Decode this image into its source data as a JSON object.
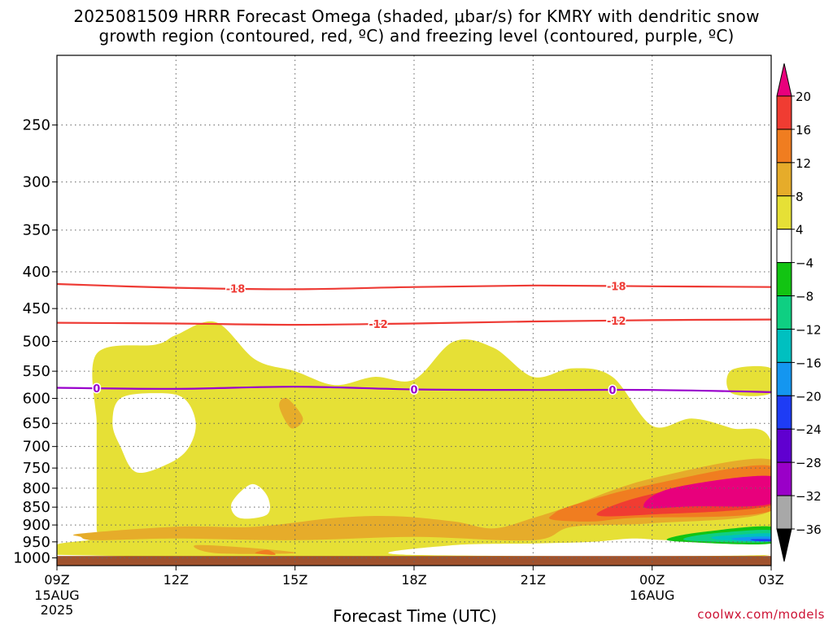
{
  "title": {
    "line1": "2025081509 HRRR Forecast Omega (shaded, μbar/s) for KMRY with dendritic snow",
    "line2": "growth region (contoured, red, ºC) and freezing level (contoured, purple, ºC)"
  },
  "xlabel": "Forecast Time (UTC)",
  "credit": "coolwx.com/models",
  "colors": {
    "temp_contour": "#ee3b35",
    "freezing_contour": "#9900cc",
    "ground": "#a0522d",
    "grid": "#666666"
  },
  "chart_data": {
    "type": "heatmap",
    "x_axis": {
      "ticks": [
        {
          "hour": 0,
          "label": "09Z",
          "sub1": "15AUG",
          "sub2": "2025"
        },
        {
          "hour": 3,
          "label": "12Z",
          "sub1": "",
          "sub2": ""
        },
        {
          "hour": 6,
          "label": "15Z",
          "sub1": "",
          "sub2": ""
        },
        {
          "hour": 9,
          "label": "18Z",
          "sub1": "",
          "sub2": ""
        },
        {
          "hour": 12,
          "label": "21Z",
          "sub1": "",
          "sub2": ""
        },
        {
          "hour": 15,
          "label": "00Z",
          "sub1": "16AUG",
          "sub2": ""
        },
        {
          "hour": 18,
          "label": "03Z",
          "sub1": "",
          "sub2": ""
        }
      ],
      "range": [
        0,
        18
      ]
    },
    "y_axis": {
      "scale": "log-pressure",
      "ticks": [
        250,
        300,
        350,
        400,
        450,
        500,
        550,
        600,
        650,
        700,
        750,
        800,
        850,
        900,
        950,
        1000
      ],
      "range": [
        200,
        1025
      ]
    },
    "colorbar": {
      "labels": [
        "20",
        "16",
        "12",
        "8",
        "4",
        "−4",
        "−8",
        "−12",
        "−16",
        "−20",
        "−24",
        "−28",
        "−32",
        "−36"
      ],
      "bins": [
        {
          "color": "#e8007c"
        },
        {
          "color": "#f03c32"
        },
        {
          "color": "#f07d20"
        },
        {
          "color": "#e6ac2a"
        },
        {
          "color": "#e6e036"
        },
        {
          "color": "#ffffff"
        },
        {
          "color": "#12c412"
        },
        {
          "color": "#0fcf82"
        },
        {
          "color": "#00c0c0"
        },
        {
          "color": "#1496f0"
        },
        {
          "color": "#1e3cf5"
        },
        {
          "color": "#6000d0"
        },
        {
          "color": "#9a00c8"
        },
        {
          "color": "#a8a8a8"
        },
        {
          "color": "#000000"
        }
      ]
    },
    "contours": [
      {
        "label": "-18",
        "kind": "temp",
        "label_hours": [
          4.5,
          14.1
        ],
        "points": [
          [
            0,
            416
          ],
          [
            3,
            421
          ],
          [
            6,
            423
          ],
          [
            9,
            420
          ],
          [
            12,
            418
          ],
          [
            15,
            419
          ],
          [
            18,
            420
          ]
        ]
      },
      {
        "label": "-12",
        "kind": "temp",
        "label_hours": [
          8.1,
          14.1
        ],
        "points": [
          [
            0,
            471
          ],
          [
            3,
            472
          ],
          [
            6,
            474
          ],
          [
            9,
            472
          ],
          [
            12,
            469
          ],
          [
            15,
            467
          ],
          [
            18,
            466
          ]
        ]
      },
      {
        "label": "0",
        "kind": "freezing",
        "label_hours": [
          1.0,
          9.0,
          14.0
        ],
        "points": [
          [
            0,
            580
          ],
          [
            3,
            582
          ],
          [
            6,
            578
          ],
          [
            9,
            583
          ],
          [
            12,
            584
          ],
          [
            15,
            584
          ],
          [
            18,
            588
          ]
        ]
      }
    ],
    "shaded_regions": [
      {
        "bin": "4-8",
        "points": [
          [
            0,
            958
          ],
          [
            1,
            940
          ],
          [
            1,
            910
          ],
          [
            1,
            800
          ],
          [
            1,
            700
          ],
          [
            1,
            648
          ],
          [
            1,
            520
          ],
          [
            2.5,
            505
          ],
          [
            3,
            490
          ],
          [
            4,
            470
          ],
          [
            5,
            530
          ],
          [
            6,
            550
          ],
          [
            7,
            575
          ],
          [
            8,
            560
          ],
          [
            9,
            565
          ],
          [
            10,
            500
          ],
          [
            11,
            510
          ],
          [
            12,
            560
          ],
          [
            13,
            545
          ],
          [
            14,
            560
          ],
          [
            15,
            655
          ],
          [
            16,
            640
          ],
          [
            17,
            660
          ],
          [
            18,
            690
          ],
          [
            18,
            990
          ],
          [
            0,
            990
          ]
        ]
      },
      {
        "bin": "4-8",
        "points": [
          [
            17.0,
            590
          ],
          [
            18,
            590
          ],
          [
            18,
            545
          ],
          [
            17,
            548
          ]
        ]
      },
      {
        "bin": "white-hole",
        "points": [
          [
            1.6,
            600
          ],
          [
            2.5,
            590
          ],
          [
            3.2,
            600
          ],
          [
            3.5,
            650
          ],
          [
            3.3,
            705
          ],
          [
            2.8,
            740
          ],
          [
            2,
            760
          ],
          [
            1.6,
            700
          ],
          [
            1.4,
            650
          ]
        ]
      },
      {
        "bin": "white-hole",
        "points": [
          [
            4.9,
            790
          ],
          [
            5.3,
            820
          ],
          [
            5.3,
            870
          ],
          [
            4.6,
            880
          ],
          [
            4.4,
            840
          ]
        ]
      },
      {
        "bin": "8-12",
        "points": [
          [
            0.6,
            925
          ],
          [
            3,
            905
          ],
          [
            5,
            905
          ],
          [
            7,
            880
          ],
          [
            8.5,
            875
          ],
          [
            10,
            890
          ],
          [
            11,
            910
          ],
          [
            12,
            880
          ],
          [
            13,
            845
          ],
          [
            15,
            775
          ],
          [
            18,
            730
          ],
          [
            18,
            860
          ],
          [
            15,
            895
          ],
          [
            13,
            905
          ],
          [
            12,
            945
          ],
          [
            9,
            935
          ],
          [
            6,
            945
          ],
          [
            3,
            940
          ],
          [
            1,
            945
          ],
          [
            0.6,
            935
          ]
        ]
      },
      {
        "bin": "8-12",
        "points": [
          [
            5.8,
            600
          ],
          [
            6.2,
            640
          ],
          [
            5.9,
            660
          ],
          [
            5.6,
            615
          ]
        ]
      },
      {
        "bin": "8-12",
        "points": [
          [
            3.5,
            960
          ],
          [
            5,
            970
          ],
          [
            6,
            985
          ],
          [
            4,
            985
          ]
        ]
      },
      {
        "bin": "12-16",
        "points": [
          [
            12.5,
            870
          ],
          [
            13,
            845
          ],
          [
            15,
            790
          ],
          [
            18,
            745
          ],
          [
            18,
            860
          ],
          [
            14.5,
            880
          ],
          [
            13.5,
            890
          ],
          [
            12.5,
            885
          ]
        ]
      },
      {
        "bin": "12-16",
        "points": [
          [
            5,
            985
          ],
          [
            5.3,
            975
          ],
          [
            5.5,
            990
          ]
        ]
      },
      {
        "bin": "16-20",
        "points": [
          [
            13.6,
            870
          ],
          [
            15,
            815
          ],
          [
            18,
            770
          ],
          [
            18,
            845
          ],
          [
            15,
            870
          ]
        ]
      },
      {
        "bin": "20+",
        "points": [
          [
            14.8,
            850
          ],
          [
            15.5,
            800
          ],
          [
            18,
            770
          ],
          [
            18,
            840
          ],
          [
            16,
            848
          ]
        ]
      },
      {
        "bin": "white-hole",
        "points": [
          [
            8.8,
            990
          ],
          [
            10,
            960
          ],
          [
            12,
            955
          ],
          [
            13.5,
            950
          ],
          [
            14.5,
            940
          ],
          [
            15.5,
            945
          ],
          [
            18,
            945
          ],
          [
            18,
            990
          ]
        ]
      },
      {
        "bin": "-4 - -8",
        "points": [
          [
            15.4,
            940
          ],
          [
            16.3,
            920
          ],
          [
            18,
            905
          ],
          [
            18,
            955
          ],
          [
            15.8,
            950
          ]
        ]
      },
      {
        "bin": "-8 - -12",
        "points": [
          [
            15.8,
            940
          ],
          [
            16.5,
            925
          ],
          [
            18,
            915
          ],
          [
            18,
            950
          ],
          [
            16.2,
            948
          ]
        ]
      },
      {
        "bin": "-12 - -16",
        "points": [
          [
            16.5,
            936
          ],
          [
            17.0,
            930
          ],
          [
            18,
            925
          ],
          [
            18,
            948
          ],
          [
            16.8,
            945
          ]
        ]
      },
      {
        "bin": "-16 - -20",
        "points": [
          [
            17.0,
            940
          ],
          [
            17.5,
            935
          ],
          [
            18,
            935
          ],
          [
            18,
            948
          ],
          [
            17.3,
            946
          ]
        ]
      },
      {
        "bin": "-20 - -24",
        "points": [
          [
            17.5,
            942
          ],
          [
            18,
            942
          ],
          [
            18,
            948
          ],
          [
            17.6,
            947
          ]
        ]
      }
    ],
    "ground": {
      "top_pressure": 994,
      "bottom_pressure": 1025
    }
  }
}
